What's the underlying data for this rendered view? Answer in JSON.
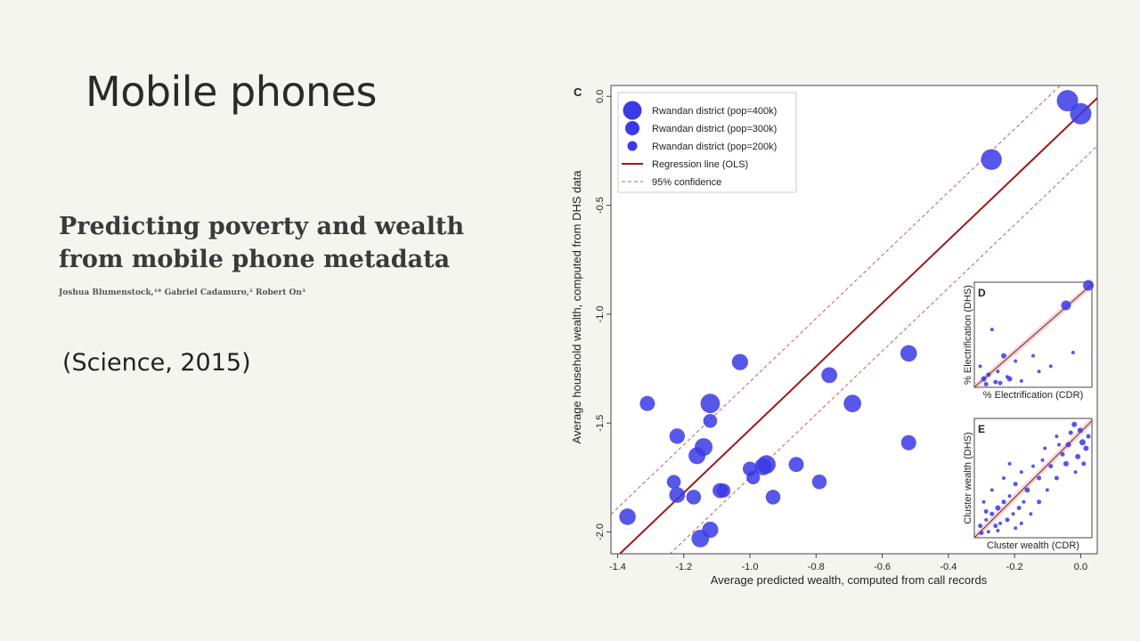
{
  "slide": {
    "title": "Mobile phones",
    "paper_title": "Predicting poverty and wealth from mobile phone metadata",
    "paper_authors": "Joshua Blumenstock,¹* Gabriel Cadamuro,² Robert On³",
    "citation": "(Science, 2015)"
  },
  "colors": {
    "point": "#3a3ae6",
    "regression": "#a01818",
    "confidence": "#c06060",
    "frame": "#444444",
    "background": "#f5f5ef"
  },
  "chart_data": [
    {
      "panel": "C",
      "type": "scatter",
      "xlabel": "Average predicted wealth, computed from call records",
      "ylabel": "Average household wealth, computed from DHS data",
      "xlim": [
        -1.42,
        0.05
      ],
      "ylim": [
        -2.1,
        0.05
      ],
      "xticks": [
        -1.4,
        -1.2,
        -1.0,
        -0.8,
        -0.6,
        -0.4,
        -0.2,
        0.0
      ],
      "xtick_labels": [
        "-1.4",
        "-1.2",
        "-1.0",
        "-0.8",
        "-0.6",
        "-0.4",
        "-0.2",
        "0.0"
      ],
      "yticks": [
        0.0,
        -0.5,
        -1.0,
        -1.5,
        -2.0
      ],
      "ytick_labels": [
        "0.0",
        "-0.5",
        "-1.0",
        "-1.5",
        "-2.0"
      ],
      "legend_position": "top-left",
      "legend": [
        {
          "label": "Rwandan district (pop=400k)",
          "kind": "point",
          "size": "large"
        },
        {
          "label": "Rwandan district (pop=300k)",
          "kind": "point",
          "size": "medium"
        },
        {
          "label": "Rwandan district (pop=200k)",
          "kind": "point",
          "size": "small"
        },
        {
          "label": "Regression line (OLS)",
          "kind": "solid-line"
        },
        {
          "label": "95% confidence",
          "kind": "dashed-line"
        }
      ],
      "points": [
        {
          "x": -0.04,
          "y": -0.02,
          "pop": 400
        },
        {
          "x": 0.0,
          "y": -0.08,
          "pop": 400
        },
        {
          "x": -0.27,
          "y": -0.29,
          "pop": 380
        },
        {
          "x": -1.12,
          "y": -1.41,
          "pop": 330
        },
        {
          "x": -1.31,
          "y": -1.41,
          "pop": 200
        },
        {
          "x": -1.03,
          "y": -1.22,
          "pop": 230
        },
        {
          "x": -0.76,
          "y": -1.28,
          "pop": 220
        },
        {
          "x": -0.52,
          "y": -1.18,
          "pop": 240
        },
        {
          "x": -0.69,
          "y": -1.41,
          "pop": 270
        },
        {
          "x": -1.12,
          "y": -1.49,
          "pop": 170
        },
        {
          "x": -1.22,
          "y": -1.56,
          "pop": 210
        },
        {
          "x": -1.14,
          "y": -1.61,
          "pop": 280
        },
        {
          "x": -1.16,
          "y": -1.65,
          "pop": 250
        },
        {
          "x": -0.52,
          "y": -1.59,
          "pop": 200
        },
        {
          "x": -0.95,
          "y": -1.69,
          "pop": 300
        },
        {
          "x": -0.96,
          "y": -1.7,
          "pop": 260
        },
        {
          "x": -1.0,
          "y": -1.71,
          "pop": 180
        },
        {
          "x": -0.86,
          "y": -1.69,
          "pop": 200
        },
        {
          "x": -0.99,
          "y": -1.75,
          "pop": 160
        },
        {
          "x": -1.23,
          "y": -1.77,
          "pop": 170
        },
        {
          "x": -0.79,
          "y": -1.77,
          "pop": 190
        },
        {
          "x": -1.09,
          "y": -1.81,
          "pop": 200
        },
        {
          "x": -1.08,
          "y": -1.81,
          "pop": 170
        },
        {
          "x": -1.22,
          "y": -1.83,
          "pop": 220
        },
        {
          "x": -1.17,
          "y": -1.84,
          "pop": 190
        },
        {
          "x": -0.93,
          "y": -1.84,
          "pop": 190
        },
        {
          "x": -1.37,
          "y": -1.93,
          "pop": 240
        },
        {
          "x": -1.12,
          "y": -1.99,
          "pop": 230
        },
        {
          "x": -1.15,
          "y": -2.03,
          "pop": 270
        }
      ],
      "regression": {
        "slope": 1.45,
        "intercept": -0.08
      },
      "confidence_offset": 0.22
    },
    {
      "panel": "D",
      "type": "scatter",
      "xlabel": "% Electrification (CDR)",
      "ylabel": "% Electrification (DHS)",
      "xlim": [
        0,
        1
      ],
      "ylim": [
        0,
        1
      ],
      "points": [
        {
          "x": 0.97,
          "y": 0.97,
          "s": 6
        },
        {
          "x": 0.78,
          "y": 0.78,
          "s": 5.5
        },
        {
          "x": 0.25,
          "y": 0.3,
          "s": 3
        },
        {
          "x": 0.15,
          "y": 0.55,
          "s": 2
        },
        {
          "x": 0.35,
          "y": 0.25,
          "s": 2
        },
        {
          "x": 0.5,
          "y": 0.3,
          "s": 2
        },
        {
          "x": 0.55,
          "y": 0.15,
          "s": 2
        },
        {
          "x": 0.65,
          "y": 0.2,
          "s": 2
        },
        {
          "x": 0.08,
          "y": 0.08,
          "s": 3
        },
        {
          "x": 0.12,
          "y": 0.12,
          "s": 2.5
        },
        {
          "x": 0.18,
          "y": 0.05,
          "s": 2.5
        },
        {
          "x": 0.2,
          "y": 0.15,
          "s": 2
        },
        {
          "x": 0.3,
          "y": 0.08,
          "s": 3
        },
        {
          "x": 0.05,
          "y": 0.2,
          "s": 2
        },
        {
          "x": 0.28,
          "y": 0.1,
          "s": 2
        },
        {
          "x": 0.4,
          "y": 0.06,
          "s": 2
        },
        {
          "x": 0.1,
          "y": 0.03,
          "s": 2.5
        },
        {
          "x": 0.22,
          "y": 0.04,
          "s": 2.5
        },
        {
          "x": 0.84,
          "y": 0.33,
          "s": 2
        }
      ]
    },
    {
      "panel": "E",
      "type": "scatter",
      "xlabel": "Cluster wealth (CDR)",
      "ylabel": "Cluster wealth (DHS)",
      "xlim": [
        0,
        1
      ],
      "ylim": [
        0,
        1
      ],
      "points": [
        {
          "x": 0.92,
          "y": 0.8,
          "s": 3.5
        },
        {
          "x": 0.85,
          "y": 0.95,
          "s": 3
        },
        {
          "x": 0.9,
          "y": 0.9,
          "s": 3
        },
        {
          "x": 0.95,
          "y": 0.75,
          "s": 3
        },
        {
          "x": 0.8,
          "y": 0.78,
          "s": 3
        },
        {
          "x": 0.75,
          "y": 0.7,
          "s": 2.5
        },
        {
          "x": 0.88,
          "y": 0.68,
          "s": 3
        },
        {
          "x": 0.97,
          "y": 0.85,
          "s": 2.5
        },
        {
          "x": 0.7,
          "y": 0.85,
          "s": 2
        },
        {
          "x": 0.65,
          "y": 0.6,
          "s": 2.5
        },
        {
          "x": 0.6,
          "y": 0.75,
          "s": 2
        },
        {
          "x": 0.78,
          "y": 0.62,
          "s": 3
        },
        {
          "x": 0.55,
          "y": 0.5,
          "s": 2.5
        },
        {
          "x": 0.5,
          "y": 0.6,
          "s": 2
        },
        {
          "x": 0.45,
          "y": 0.4,
          "s": 3
        },
        {
          "x": 0.4,
          "y": 0.55,
          "s": 2
        },
        {
          "x": 0.35,
          "y": 0.45,
          "s": 2.5
        },
        {
          "x": 0.3,
          "y": 0.35,
          "s": 2
        },
        {
          "x": 0.25,
          "y": 0.3,
          "s": 2.5
        },
        {
          "x": 0.2,
          "y": 0.25,
          "s": 3
        },
        {
          "x": 0.15,
          "y": 0.2,
          "s": 2.5
        },
        {
          "x": 0.1,
          "y": 0.15,
          "s": 2
        },
        {
          "x": 0.05,
          "y": 0.1,
          "s": 2.5
        },
        {
          "x": 0.12,
          "y": 0.05,
          "s": 2
        },
        {
          "x": 0.18,
          "y": 0.1,
          "s": 2.5
        },
        {
          "x": 0.22,
          "y": 0.12,
          "s": 2
        },
        {
          "x": 0.28,
          "y": 0.15,
          "s": 2.5
        },
        {
          "x": 0.33,
          "y": 0.2,
          "s": 2
        },
        {
          "x": 0.38,
          "y": 0.25,
          "s": 2.5
        },
        {
          "x": 0.42,
          "y": 0.3,
          "s": 2
        },
        {
          "x": 0.08,
          "y": 0.3,
          "s": 2
        },
        {
          "x": 0.15,
          "y": 0.4,
          "s": 2
        },
        {
          "x": 0.25,
          "y": 0.5,
          "s": 2
        },
        {
          "x": 0.3,
          "y": 0.62,
          "s": 2
        },
        {
          "x": 0.48,
          "y": 0.2,
          "s": 2
        },
        {
          "x": 0.55,
          "y": 0.3,
          "s": 2.5
        },
        {
          "x": 0.62,
          "y": 0.4,
          "s": 2
        },
        {
          "x": 0.7,
          "y": 0.5,
          "s": 2.5
        },
        {
          "x": 0.06,
          "y": 0.04,
          "s": 2.5
        },
        {
          "x": 0.2,
          "y": 0.06,
          "s": 2
        },
        {
          "x": 0.35,
          "y": 0.08,
          "s": 2
        },
        {
          "x": 0.1,
          "y": 0.22,
          "s": 2.5
        },
        {
          "x": 0.82,
          "y": 0.88,
          "s": 2.5
        },
        {
          "x": 0.93,
          "y": 0.62,
          "s": 2.5
        },
        {
          "x": 0.72,
          "y": 0.78,
          "s": 2
        },
        {
          "x": 0.58,
          "y": 0.65,
          "s": 2
        },
        {
          "x": 0.86,
          "y": 0.55,
          "s": 2
        },
        {
          "x": 0.4,
          "y": 0.12,
          "s": 2
        }
      ]
    }
  ]
}
